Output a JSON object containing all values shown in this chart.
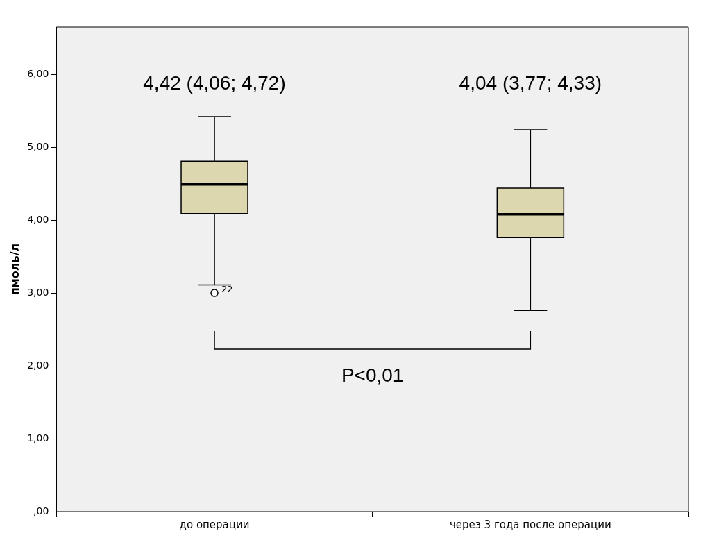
{
  "chart_data": {
    "type": "box",
    "ylabel": "пмоль/л",
    "categories": [
      "до операции",
      "через 3 года после операции"
    ],
    "color": "#dcd7ae",
    "boxes": [
      {
        "low": 3.11,
        "q1": 4.09,
        "median": 4.49,
        "q3": 4.81,
        "high": 5.42,
        "outliers": [
          3.0
        ]
      },
      {
        "low": 2.76,
        "q1": 3.76,
        "median": 4.08,
        "q3": 4.44,
        "high": 5.24
      }
    ],
    "ylim": [
      0,
      6.65
    ],
    "yticks": [
      {
        "value": 0,
        "label": ",00"
      },
      {
        "value": 1,
        "label": "1,00"
      },
      {
        "value": 2,
        "label": "2,00"
      },
      {
        "value": 3,
        "label": "3,00"
      },
      {
        "value": 4,
        "label": "4,00"
      },
      {
        "value": 5,
        "label": "5,00"
      },
      {
        "value": 6,
        "label": "6,00"
      }
    ],
    "grid": false,
    "legend": false,
    "annotations": [
      "4,42 (4,06; 4,72)",
      "4,04 (3,77; 4,33)",
      "22",
      "P<0,01"
    ]
  }
}
